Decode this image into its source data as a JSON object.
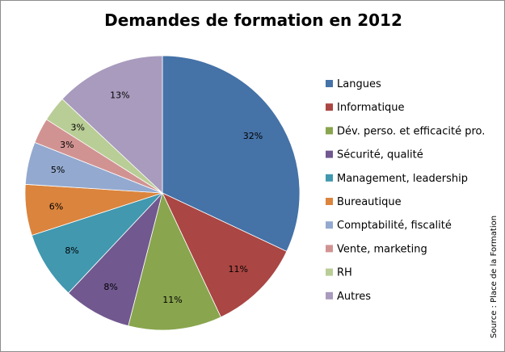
{
  "chart_data": {
    "type": "pie",
    "title": "Demandes de formation en 2012",
    "categories": [
      "Langues",
      "Informatique",
      "Dév. perso. et efficacité pro.",
      "Sécurité, qualité",
      "Management, leadership",
      "Bureautique",
      "Comptabilité, fiscalité",
      "Vente, marketing",
      "RH",
      "Autres"
    ],
    "values": [
      32,
      11,
      11,
      8,
      8,
      6,
      5,
      3,
      3,
      13
    ],
    "value_labels": [
      "32%",
      "11%",
      "11%",
      "8%",
      "8%",
      "6%",
      "5%",
      "3%",
      "3%",
      "13%"
    ],
    "colors": [
      "#4572A7",
      "#AA4643",
      "#89A54E",
      "#71588F",
      "#4198AF",
      "#DB843D",
      "#93A9CF",
      "#D19392",
      "#B9CD96",
      "#A99BBD"
    ],
    "legend_position": "right",
    "source": "Source : Place de la Formation"
  }
}
